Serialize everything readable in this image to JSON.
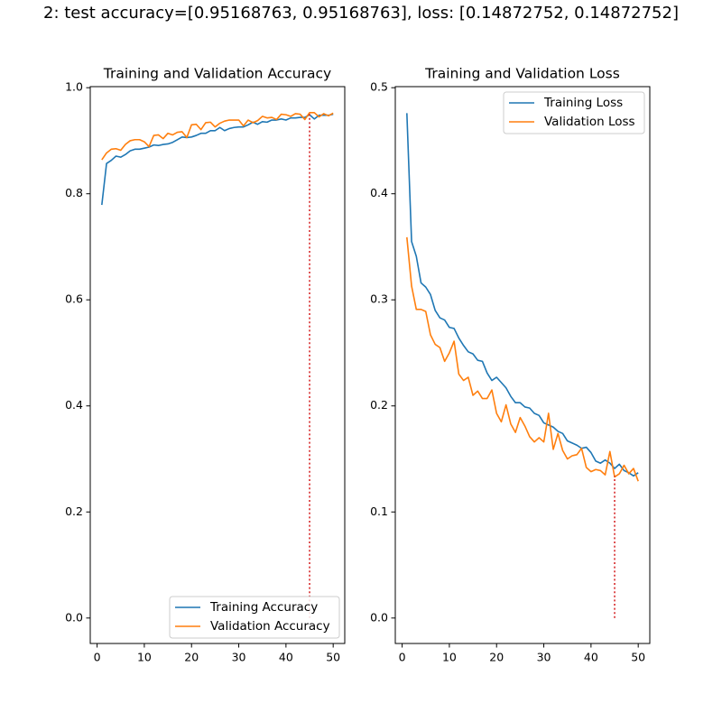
{
  "suptitle": "2: test accuracy=[0.95168763, 0.95168763], loss: [0.14872752, 0.14872752]",
  "colors": {
    "training": "#1f77b4",
    "validation": "#ff7f0e",
    "marker": "#d62728",
    "axes": "#000000",
    "legend_border": "#cccccc"
  },
  "chart_data": [
    {
      "type": "line",
      "title": "Training and Validation Accuracy",
      "xlabel": "",
      "ylabel": "",
      "xlim": [
        -1.45,
        52.45
      ],
      "ylim": [
        -0.048,
        1.002
      ],
      "xticks": [
        0,
        10,
        20,
        30,
        40,
        50
      ],
      "yticks": [
        0.0,
        0.2,
        0.4,
        0.6,
        0.8,
        1.0
      ],
      "ytick_labels": [
        "0.0",
        "0.2",
        "0.4",
        "0.6",
        "0.8",
        "1.0"
      ],
      "grid": false,
      "legend": "lower-right",
      "vline": {
        "x": 45,
        "ymin": 0.0,
        "ymax": 0.955,
        "style": "dotted"
      },
      "x": [
        1,
        2,
        3,
        4,
        5,
        6,
        7,
        8,
        9,
        10,
        11,
        12,
        13,
        14,
        15,
        16,
        17,
        18,
        19,
        20,
        21,
        22,
        23,
        24,
        25,
        26,
        27,
        28,
        29,
        30,
        31,
        32,
        33,
        34,
        35,
        36,
        37,
        38,
        39,
        40,
        41,
        42,
        43,
        44,
        45,
        46,
        47,
        48,
        49,
        50
      ],
      "series": [
        {
          "name": "Training Accuracy",
          "values": [
            0.779,
            0.857,
            0.863,
            0.871,
            0.869,
            0.874,
            0.881,
            0.884,
            0.884,
            0.886,
            0.888,
            0.892,
            0.891,
            0.893,
            0.894,
            0.897,
            0.902,
            0.907,
            0.906,
            0.907,
            0.91,
            0.914,
            0.914,
            0.919,
            0.919,
            0.925,
            0.919,
            0.923,
            0.925,
            0.926,
            0.926,
            0.93,
            0.935,
            0.931,
            0.936,
            0.935,
            0.939,
            0.939,
            0.941,
            0.939,
            0.943,
            0.943,
            0.944,
            0.944,
            0.949,
            0.941,
            0.948,
            0.948,
            0.948,
            0.95
          ]
        },
        {
          "name": "Validation Accuracy",
          "values": [
            0.864,
            0.877,
            0.884,
            0.885,
            0.882,
            0.893,
            0.9,
            0.902,
            0.902,
            0.898,
            0.889,
            0.91,
            0.911,
            0.904,
            0.914,
            0.911,
            0.916,
            0.917,
            0.906,
            0.93,
            0.931,
            0.921,
            0.934,
            0.935,
            0.926,
            0.933,
            0.937,
            0.939,
            0.939,
            0.939,
            0.928,
            0.939,
            0.934,
            0.938,
            0.946,
            0.943,
            0.944,
            0.94,
            0.95,
            0.949,
            0.946,
            0.951,
            0.95,
            0.94,
            0.953,
            0.953,
            0.945,
            0.951,
            0.947,
            0.952
          ]
        }
      ]
    },
    {
      "type": "line",
      "title": "Training and Validation Loss",
      "xlabel": "",
      "ylabel": "",
      "xlim": [
        -1.45,
        52.45
      ],
      "ylim": [
        -0.024,
        0.501
      ],
      "xticks": [
        0,
        10,
        20,
        30,
        40,
        50
      ],
      "yticks": [
        0.0,
        0.1,
        0.2,
        0.3,
        0.4,
        0.5
      ],
      "ytick_labels": [
        "0.0",
        "0.1",
        "0.2",
        "0.3",
        "0.4",
        "0.5"
      ],
      "grid": false,
      "legend": "upper-right",
      "vline": {
        "x": 45,
        "ymin": 0.0,
        "ymax": 0.134,
        "style": "dotted"
      },
      "x": [
        1,
        2,
        3,
        4,
        5,
        6,
        7,
        8,
        9,
        10,
        11,
        12,
        13,
        14,
        15,
        16,
        17,
        18,
        19,
        20,
        21,
        22,
        23,
        24,
        25,
        26,
        27,
        28,
        29,
        30,
        31,
        32,
        33,
        34,
        35,
        36,
        37,
        38,
        39,
        40,
        41,
        42,
        43,
        44,
        45,
        46,
        47,
        48,
        49,
        50
      ],
      "series": [
        {
          "name": "Training Loss",
          "values": [
            0.476,
            0.355,
            0.341,
            0.316,
            0.312,
            0.305,
            0.29,
            0.283,
            0.281,
            0.274,
            0.273,
            0.264,
            0.257,
            0.251,
            0.249,
            0.243,
            0.242,
            0.231,
            0.224,
            0.227,
            0.222,
            0.217,
            0.209,
            0.203,
            0.203,
            0.199,
            0.198,
            0.193,
            0.191,
            0.184,
            0.182,
            0.18,
            0.176,
            0.174,
            0.167,
            0.165,
            0.163,
            0.16,
            0.161,
            0.156,
            0.148,
            0.146,
            0.149,
            0.146,
            0.141,
            0.145,
            0.139,
            0.137,
            0.134,
            0.137
          ]
        },
        {
          "name": "Validation Loss",
          "values": [
            0.359,
            0.313,
            0.291,
            0.291,
            0.289,
            0.267,
            0.258,
            0.255,
            0.242,
            0.25,
            0.261,
            0.23,
            0.224,
            0.227,
            0.21,
            0.214,
            0.207,
            0.207,
            0.215,
            0.193,
            0.185,
            0.201,
            0.183,
            0.175,
            0.189,
            0.181,
            0.171,
            0.166,
            0.17,
            0.166,
            0.193,
            0.159,
            0.174,
            0.158,
            0.15,
            0.153,
            0.154,
            0.16,
            0.142,
            0.138,
            0.14,
            0.139,
            0.135,
            0.157,
            0.133,
            0.136,
            0.144,
            0.136,
            0.141,
            0.129
          ]
        }
      ]
    }
  ]
}
